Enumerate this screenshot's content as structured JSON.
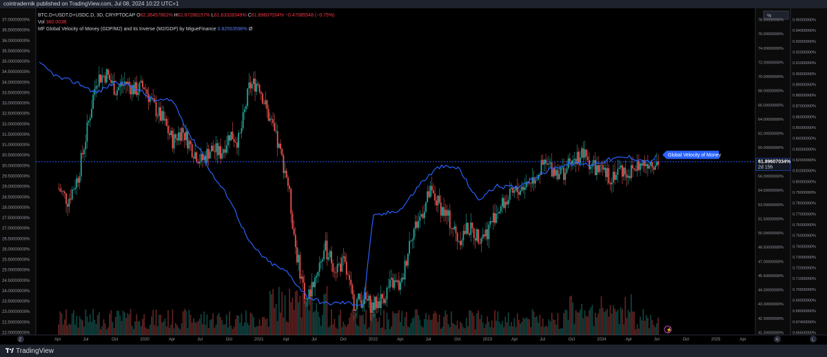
{
  "header": {
    "text": "cointradernik published on TradingView.com, Jul 08, 2024 10:22 UTC+1"
  },
  "legend": {
    "line1_symbol": "BTC.D+USDT.D+USDC.D, 3D, CRYPTOCAP",
    "o_label": "O",
    "o_value": "62.36457862%",
    "h_label": "H",
    "h_value": "62.67288157%",
    "l_label": "L",
    "l_value": "61.83328349%",
    "c_label": "C",
    "c_value": "61.89607034%",
    "change": "−0.47085548 (−0.75%)",
    "vol_label": "Vol",
    "vol_value": "360.003B",
    "indicator_name": "MF Global Velocity of Money (GDP/M2) and its Inverse (M2/GDP) by MigueFinance",
    "indicator_value": "0.82553596%",
    "indicator_extra": "Ø"
  },
  "footer": {
    "logo_text": "TradingView",
    "left_button": "Z",
    "right_button": "A",
    "right_button2": "L"
  },
  "colors": {
    "bg": "#000000",
    "up": "#26a69a",
    "down": "#ef5350",
    "velocity_line": "#2962ff",
    "dotted": "#2962ff",
    "label_bg": "#2962ff"
  },
  "chart_data": {
    "type": "line",
    "title": "BTC.D+USDT.D+USDC.D, 3D, CRYPTOCAP",
    "left_axis": {
      "range": [
        22.0,
        37.0
      ],
      "ticks": [
        "37.00000000%",
        "36.50000000%",
        "36.00000000%",
        "35.50000000%",
        "35.00000000%",
        "34.50000000%",
        "34.00000000%",
        "33.50000000%",
        "33.00000000%",
        "32.50000000%",
        "32.00000000%",
        "31.50000000%",
        "31.00000000%",
        "30.50000000%",
        "30.00000000%",
        "29.50000000%",
        "29.00000000%",
        "28.50000000%",
        "28.00000000%",
        "27.50000000%",
        "27.00000000%",
        "26.50000000%",
        "26.00000000%",
        "25.50000000%",
        "25.00000000%",
        "24.50000000%",
        "24.00000000%",
        "23.50000000%",
        "23.00000000%",
        "22.50000000%",
        "22.00000000%"
      ]
    },
    "right_axis1": {
      "range": [
        41.3,
        80.0
      ],
      "ticks": [
        "78.00000000%",
        "76.00000000%",
        "74.00000000%",
        "72.00000000%",
        "70.00000000%",
        "68.00000000%",
        "66.00000000%",
        "64.00000000%",
        "62.00000000%",
        "60.00000000%",
        "58.00000000%",
        "56.00000000%",
        "54.50000000%",
        "53.00000000%",
        "51.50000000%",
        "50.00000000%",
        "48.50000000%",
        "47.00000000%",
        "45.50000000%",
        "44.30000000%",
        "43.30000000%",
        "42.30000000%",
        "41.30000000%"
      ],
      "header": "%"
    },
    "right_axis2": {
      "range": [
        0.664,
        0.952
      ],
      "ticks": [
        "0.95000000%",
        "0.94000000%",
        "0.93000000%",
        "0.92000000%",
        "0.91000000%",
        "0.90000000%",
        "0.89000000%",
        "0.88000000%",
        "0.87000000%",
        "0.86000000%",
        "0.85000000%",
        "0.84000000%",
        "0.83000000%",
        "0.82000000%",
        "0.81000000%",
        "0.80000000%",
        "0.79000000%",
        "0.78000000%",
        "0.77000000%",
        "0.76000000%",
        "0.75000000%",
        "0.74000000%",
        "0.73000000%",
        "0.72000000%",
        "0.71000000%",
        "0.70000000%",
        "0.69000000%",
        "0.68000000%",
        "0.67400000%",
        "0.66600000%"
      ]
    },
    "x_ticks": [
      "Apr",
      "Jul",
      "Oct",
      "2020",
      "Apr",
      "Jul",
      "Oct",
      "2021",
      "Apr",
      "Jul",
      "Oct",
      "2022",
      "Apr",
      "Jul",
      "Oct",
      "2023",
      "Apr",
      "Jul",
      "Oct",
      "2024",
      "Apr",
      "Jul",
      "Oct",
      "2025",
      "Apr"
    ],
    "current_price_label": "61.89607034%",
    "countdown_label": "2d 15h",
    "velocity_label": "Global Velocity of Money",
    "series": [
      {
        "name": "BTC.D+USDT.D+USDC.D",
        "x": [
          2019.25,
          2019.33,
          2019.42,
          2019.5,
          2019.58,
          2019.67,
          2019.75,
          2019.83,
          2019.92,
          2020.0,
          2020.08,
          2020.17,
          2020.25,
          2020.33,
          2020.42,
          2020.5,
          2020.58,
          2020.67,
          2020.75,
          2020.83,
          2020.92,
          2021.0,
          2021.08,
          2021.17,
          2021.25,
          2021.33,
          2021.42,
          2021.5,
          2021.58,
          2021.67,
          2021.75,
          2021.83,
          2021.92,
          2022.0,
          2022.08,
          2022.17,
          2022.25,
          2022.33,
          2022.42,
          2022.5,
          2022.58,
          2022.67,
          2022.75,
          2022.83,
          2022.92,
          2023.0,
          2023.08,
          2023.17,
          2023.25,
          2023.33,
          2023.42,
          2023.5,
          2023.58,
          2023.67,
          2023.75,
          2023.83,
          2023.92,
          2024.0,
          2024.08,
          2024.17,
          2024.25,
          2024.33,
          2024.42,
          2024.5
        ],
        "y": [
          58.5,
          57.0,
          60.0,
          66.0,
          72.5,
          73.0,
          71.0,
          72.0,
          71.0,
          71.5,
          69.0,
          67.0,
          64.5,
          66.0,
          63.5,
          62.0,
          63.5,
          63.0,
          65.5,
          64.5,
          71.5,
          72.0,
          68.0,
          64.0,
          60.0,
          50.5,
          44.0,
          47.5,
          51.0,
          48.5,
          49.0,
          44.0,
          44.5,
          43.5,
          44.5,
          46.5,
          46.0,
          52.5,
          55.0,
          58.0,
          56.5,
          54.5,
          52.0,
          53.5,
          52.5,
          53.0,
          55.5,
          57.0,
          58.0,
          59.0,
          60.0,
          61.5,
          61.0,
          60.5,
          62.0,
          63.0,
          61.5,
          60.5,
          60.0,
          61.0,
          60.5,
          61.5,
          62.0,
          61.9
        ]
      },
      {
        "name": "Global Velocity of Money",
        "x": [
          2019.08,
          2019.25,
          2019.42,
          2019.58,
          2019.75,
          2019.92,
          2020.08,
          2020.25,
          2020.42,
          2020.5,
          2020.58,
          2020.75,
          2020.92,
          2021.08,
          2021.25,
          2021.42,
          2021.58,
          2021.75,
          2021.92,
          2022.0,
          2022.08,
          2022.25,
          2022.42,
          2022.58,
          2022.75,
          2022.92,
          2023.08,
          2023.25,
          2023.42,
          2023.58,
          2023.75,
          2023.92,
          2024.08,
          2024.25,
          2024.42,
          2024.5
        ],
        "y": [
          0.91,
          0.897,
          0.892,
          0.883,
          0.893,
          0.888,
          0.876,
          0.876,
          0.84,
          0.83,
          0.81,
          0.785,
          0.745,
          0.728,
          0.718,
          0.696,
          0.689,
          0.69,
          0.688,
          0.769,
          0.771,
          0.776,
          0.8,
          0.815,
          0.814,
          0.784,
          0.797,
          0.796,
          0.805,
          0.814,
          0.818,
          0.817,
          0.822,
          0.824,
          0.819,
          0.826
        ]
      }
    ]
  }
}
